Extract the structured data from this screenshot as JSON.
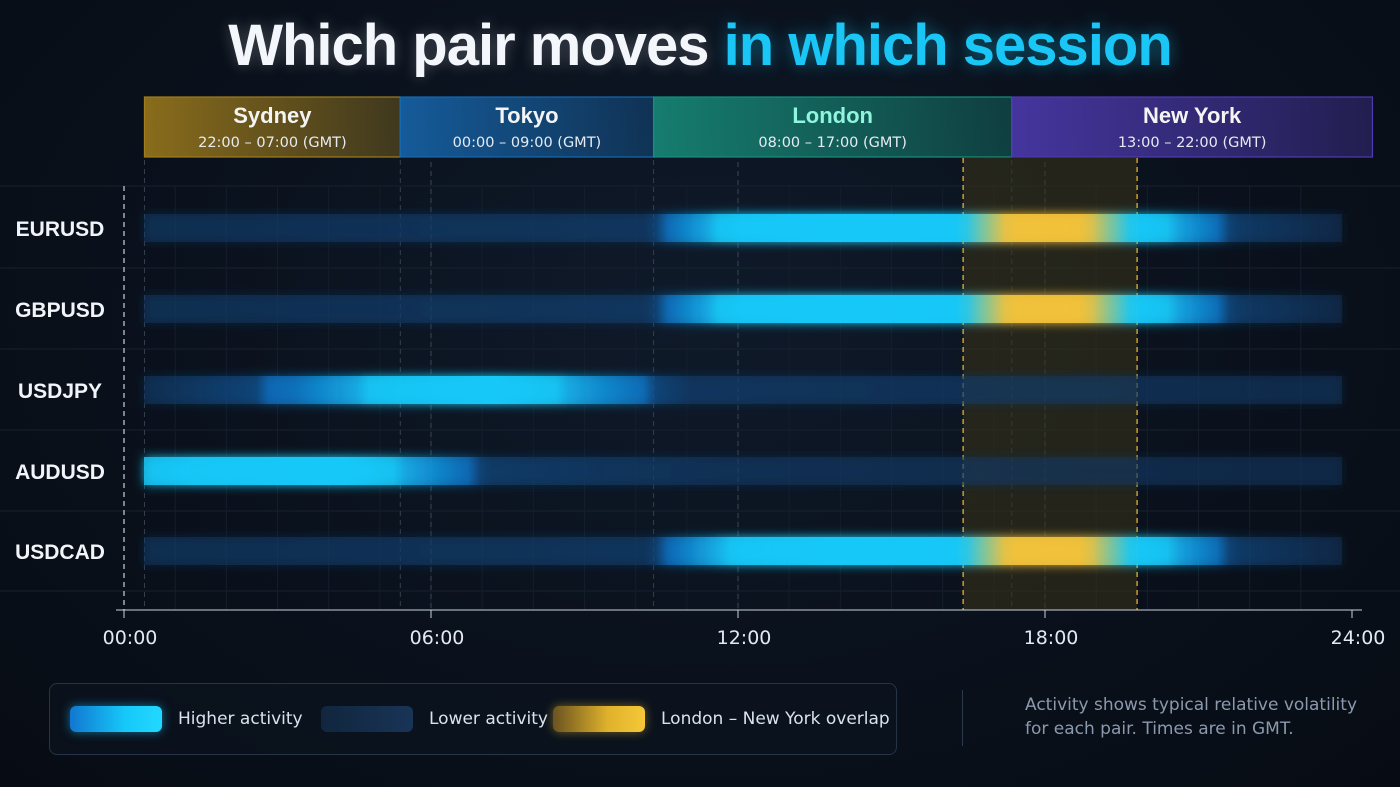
{
  "title": {
    "part1": "Which pair moves",
    "part2": "in which session"
  },
  "colors": {
    "high": "#16c8f8",
    "high_edge": "#1177d0",
    "low": "#14294a",
    "overlap": "#f2c23a",
    "overlap_band": "#3a3317",
    "overlap_line": "#d9a72a",
    "sydney": "#a07d1c",
    "tokyo": "#1768b0",
    "london": "#178f7c",
    "newyork": "#4f3bb4"
  },
  "chart_data": {
    "type": "heatmap",
    "x_unit": "hour (GMT)",
    "xlim": [
      0,
      24
    ],
    "x_ticks": [
      0,
      6,
      12,
      18,
      24
    ],
    "x_tick_labels": [
      "00:00",
      "06:00",
      "12:00",
      "18:00",
      "24:00"
    ],
    "sessions": [
      {
        "name": "Sydney",
        "hours": "22:00 – 07:00 (GMT)",
        "start": 0.4,
        "end": 5.4,
        "color": "#a07d1c"
      },
      {
        "name": "Tokyo",
        "hours": "00:00 – 09:00 (GMT)",
        "start": 5.4,
        "end": 10.35,
        "color": "#1768b0"
      },
      {
        "name": "London",
        "hours": "08:00 – 17:00 (GMT)",
        "start": 10.35,
        "end": 17.35,
        "color": "#178f7c"
      },
      {
        "name": "New York",
        "hours": "13:00 – 22:00 (GMT)",
        "start": 17.35,
        "end": 24.4,
        "color": "#4f3bb4"
      }
    ],
    "overlap": {
      "label": "London – New York overlap",
      "start": 16.4,
      "end": 19.8
    },
    "pairs": [
      {
        "name": "EURUSD",
        "activity": [
          [
            0,
            0.15
          ],
          [
            10,
            0.2
          ],
          [
            12,
            0.9
          ],
          [
            14,
            1
          ],
          [
            16,
            0.95
          ],
          [
            20,
            0.85
          ],
          [
            22,
            0.25
          ],
          [
            24,
            0.1
          ]
        ]
      },
      {
        "name": "GBPUSD",
        "activity": [
          [
            0,
            0.15
          ],
          [
            10,
            0.2
          ],
          [
            12,
            0.9
          ],
          [
            14,
            1
          ],
          [
            16,
            0.95
          ],
          [
            20,
            0.85
          ],
          [
            22,
            0.25
          ],
          [
            24,
            0.1
          ]
        ]
      },
      {
        "name": "USDJPY",
        "activity": [
          [
            0,
            0.15
          ],
          [
            3,
            0.4
          ],
          [
            5,
            0.8
          ],
          [
            7,
            1
          ],
          [
            9,
            0.55
          ],
          [
            11,
            0.2
          ],
          [
            24,
            0.12
          ]
        ]
      },
      {
        "name": "AUDUSD",
        "activity": [
          [
            0,
            0.7
          ],
          [
            1,
            0.9
          ],
          [
            4,
            1
          ],
          [
            5,
            0.7
          ],
          [
            7,
            0.25
          ],
          [
            12,
            0.15
          ],
          [
            24,
            0.1
          ]
        ]
      },
      {
        "name": "USDCAD",
        "activity": [
          [
            0,
            0.15
          ],
          [
            10,
            0.2
          ],
          [
            12,
            0.85
          ],
          [
            14,
            1
          ],
          [
            16,
            0.95
          ],
          [
            20,
            0.85
          ],
          [
            22,
            0.25
          ],
          [
            24,
            0.1
          ]
        ]
      }
    ]
  },
  "legend": {
    "high": "Higher activity",
    "low": "Lower activity",
    "overlap": "London – New York overlap"
  },
  "note": "Activity shows typical relative volatility for each pair. Times are in GMT."
}
